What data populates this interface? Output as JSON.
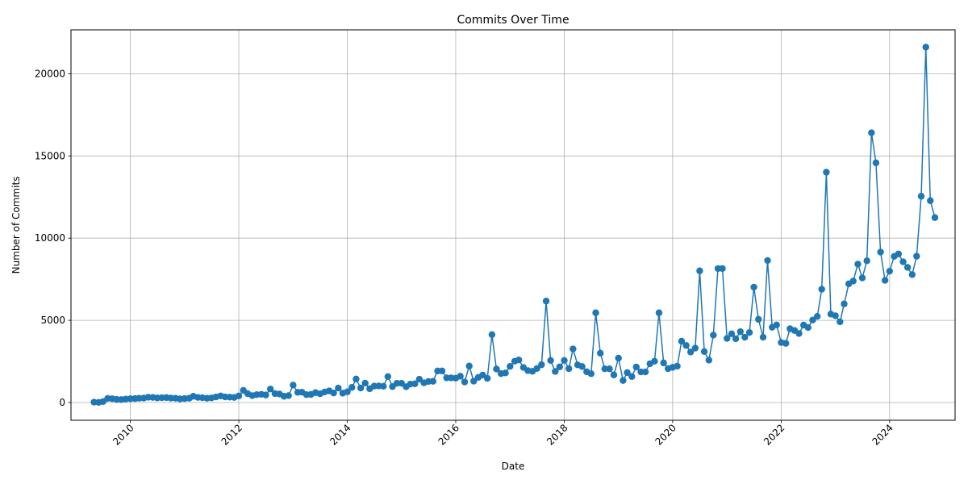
{
  "chart_data": {
    "type": "line",
    "title": "Commits Over Time",
    "xlabel": "Date",
    "ylabel": "Number of Commits",
    "x_range": [
      "2008-11-27",
      "2025-03-17"
    ],
    "ylim": [
      -1080,
      22670
    ],
    "x_ticks": [
      "2010",
      "2012",
      "2014",
      "2016",
      "2018",
      "2020",
      "2022",
      "2024"
    ],
    "y_ticks": [
      0,
      5000,
      10000,
      15000,
      20000
    ],
    "grid": true,
    "legend": "none",
    "series": [
      {
        "color": "#1f77b4",
        "marker": "circle",
        "x": [
          "2009-05",
          "2009-06",
          "2009-07",
          "2009-08",
          "2009-09",
          "2009-10",
          "2009-11",
          "2009-12",
          "2010-01",
          "2010-02",
          "2010-03",
          "2010-04",
          "2010-05",
          "2010-06",
          "2010-07",
          "2010-08",
          "2010-09",
          "2010-10",
          "2010-11",
          "2010-12",
          "2011-01",
          "2011-02",
          "2011-03",
          "2011-04",
          "2011-05",
          "2011-06",
          "2011-07",
          "2011-08",
          "2011-09",
          "2011-10",
          "2011-11",
          "2011-12",
          "2012-01",
          "2012-02",
          "2012-03",
          "2012-04",
          "2012-05",
          "2012-06",
          "2012-07",
          "2012-08",
          "2012-09",
          "2012-10",
          "2012-11",
          "2012-12",
          "2013-01",
          "2013-02",
          "2013-03",
          "2013-04",
          "2013-05",
          "2013-06",
          "2013-07",
          "2013-08",
          "2013-09",
          "2013-10",
          "2013-11",
          "2013-12",
          "2014-01",
          "2014-02",
          "2014-03",
          "2014-04",
          "2014-05",
          "2014-06",
          "2014-07",
          "2014-08",
          "2014-09",
          "2014-10",
          "2014-11",
          "2014-12",
          "2015-01",
          "2015-02",
          "2015-03",
          "2015-04",
          "2015-05",
          "2015-06",
          "2015-07",
          "2015-08",
          "2015-09",
          "2015-10",
          "2015-11",
          "2015-12",
          "2016-01",
          "2016-02",
          "2016-03",
          "2016-04",
          "2016-05",
          "2016-06",
          "2016-07",
          "2016-08",
          "2016-09",
          "2016-10",
          "2016-11",
          "2016-12",
          "2017-01",
          "2017-02",
          "2017-03",
          "2017-04",
          "2017-05",
          "2017-06",
          "2017-07",
          "2017-08",
          "2017-09",
          "2017-10",
          "2017-11",
          "2017-12",
          "2018-01",
          "2018-02",
          "2018-03",
          "2018-04",
          "2018-05",
          "2018-06",
          "2018-07",
          "2018-08",
          "2018-09",
          "2018-10",
          "2018-11",
          "2018-12",
          "2019-01",
          "2019-02",
          "2019-03",
          "2019-04",
          "2019-05",
          "2019-06",
          "2019-07",
          "2019-08",
          "2019-09",
          "2019-10",
          "2019-11",
          "2019-12",
          "2020-01",
          "2020-02",
          "2020-03",
          "2020-04",
          "2020-05",
          "2020-06",
          "2020-07",
          "2020-08",
          "2020-09",
          "2020-10",
          "2020-11",
          "2020-12",
          "2021-01",
          "2021-02",
          "2021-03",
          "2021-04",
          "2021-05",
          "2021-06",
          "2021-07",
          "2021-08",
          "2021-09",
          "2021-10",
          "2021-11",
          "2021-12",
          "2022-01",
          "2022-02",
          "2022-03",
          "2022-04",
          "2022-05",
          "2022-06",
          "2022-07",
          "2022-08",
          "2022-09",
          "2022-10",
          "2022-11",
          "2022-12",
          "2023-01",
          "2023-02",
          "2023-03",
          "2023-04",
          "2023-05",
          "2023-06",
          "2023-07",
          "2023-08",
          "2023-09",
          "2023-10",
          "2023-11",
          "2023-12",
          "2024-01",
          "2024-02",
          "2024-03",
          "2024-04",
          "2024-05",
          "2024-06",
          "2024-07",
          "2024-08",
          "2024-09",
          "2024-10",
          "2024-11"
        ],
        "values": [
          20,
          10,
          60,
          250,
          230,
          190,
          180,
          210,
          230,
          240,
          260,
          270,
          320,
          310,
          280,
          290,
          300,
          270,
          260,
          220,
          240,
          260,
          380,
          310,
          290,
          260,
          280,
          340,
          400,
          340,
          330,
          310,
          400,
          740,
          540,
          420,
          480,
          500,
          460,
          820,
          540,
          520,
          380,
          420,
          1060,
          620,
          630,
          480,
          490,
          600,
          530,
          640,
          710,
          580,
          880,
          570,
          650,
          920,
          1430,
          880,
          1180,
          840,
          1000,
          1010,
          990,
          1580,
          970,
          1170,
          1170,
          960,
          1120,
          1140,
          1420,
          1200,
          1280,
          1290,
          1920,
          1920,
          1500,
          1500,
          1480,
          1600,
          1250,
          2220,
          1300,
          1530,
          1670,
          1470,
          4130,
          2040,
          1760,
          1800,
          2200,
          2510,
          2590,
          2130,
          1940,
          1900,
          2070,
          2300,
          6170,
          2560,
          1890,
          2170,
          2560,
          2060,
          3260,
          2290,
          2190,
          1870,
          1750,
          5460,
          3000,
          2050,
          2050,
          1680,
          2700,
          1340,
          1820,
          1580,
          2160,
          1860,
          1860,
          2360,
          2510,
          5460,
          2410,
          2060,
          2140,
          2210,
          3730,
          3470,
          3070,
          3310,
          8010,
          3100,
          2580,
          4100,
          8150,
          8150,
          3900,
          4180,
          3880,
          4310,
          3970,
          4260,
          7020,
          5060,
          3970,
          8640,
          4580,
          4720,
          3650,
          3600,
          4490,
          4380,
          4200,
          4710,
          4560,
          5020,
          5240,
          6890,
          14010,
          5380,
          5280,
          4910,
          6000,
          7220,
          7390,
          8420,
          7580,
          8620,
          16410,
          14580,
          9150,
          7430,
          7990,
          8890,
          9040,
          8560,
          8220,
          7780,
          8900,
          12550,
          21620,
          12280,
          11250
        ]
      }
    ]
  }
}
